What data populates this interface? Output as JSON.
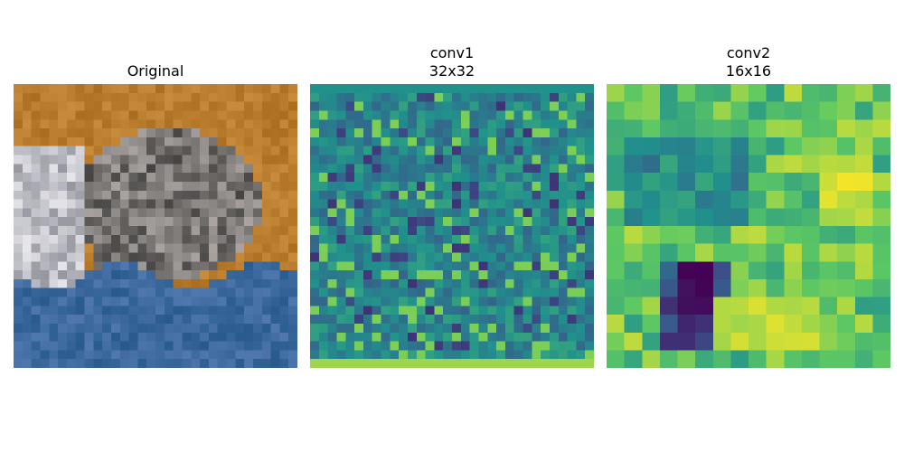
{
  "figure": {
    "panels": [
      {
        "title": "Original",
        "kind": "rgb-photo",
        "description_id": "cat-photo-thumbnail",
        "grid": [
          32,
          32
        ]
      },
      {
        "title": "conv1\n32x32",
        "kind": "feature-map",
        "colormap": "viridis",
        "grid": [
          32,
          32
        ]
      },
      {
        "title": "conv2\n16x16",
        "kind": "feature-map",
        "colormap": "viridis",
        "grid": [
          16,
          16
        ]
      }
    ]
  },
  "colors": {
    "viridis": [
      "#440154",
      "#3b528b",
      "#21918c",
      "#5ec962",
      "#fde725"
    ]
  }
}
